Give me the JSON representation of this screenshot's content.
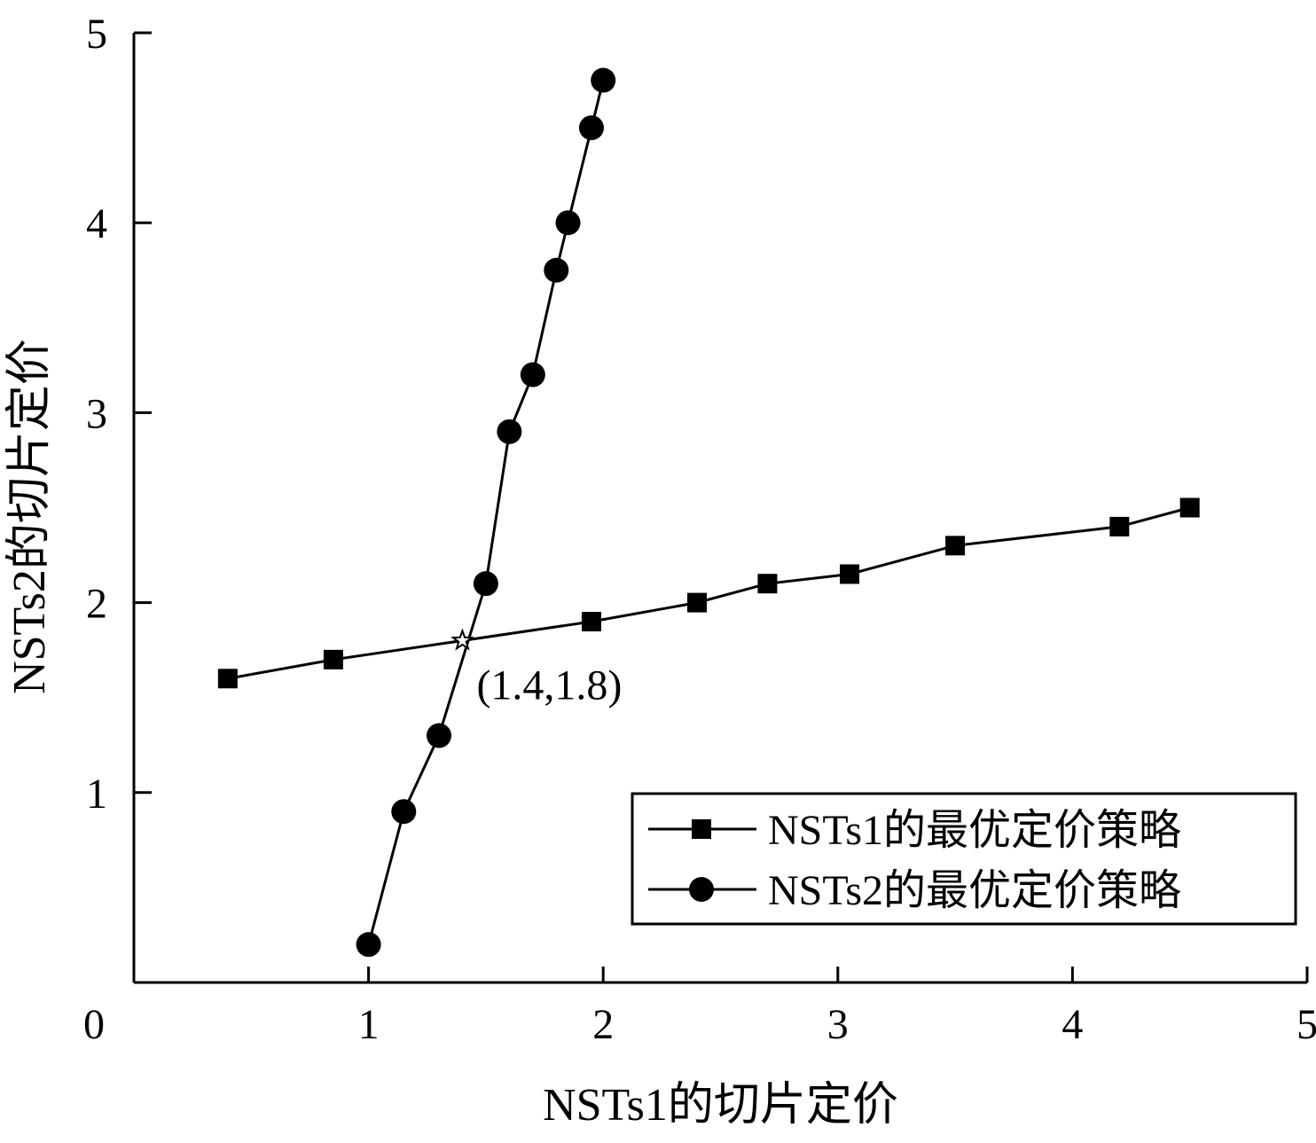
{
  "chart_data": {
    "type": "line",
    "title": "",
    "xlabel": "NSTs1的切片定价",
    "ylabel": "NSTs2的切片定价",
    "xlim": [
      0,
      5
    ],
    "ylim": [
      0,
      5
    ],
    "x_ticks": [
      "0",
      "1",
      "2",
      "3",
      "4",
      "5"
    ],
    "y_ticks": [
      "1",
      "2",
      "3",
      "4",
      "5"
    ],
    "grid": false,
    "legend_position": "bottom-right",
    "colors": {
      "line": "#000000",
      "background": "#ffffff"
    },
    "series": [
      {
        "name": "NSTs1的最优定价策略",
        "marker": "square",
        "x": [
          0.4,
          0.85,
          1.95,
          2.4,
          2.7,
          3.05,
          3.5,
          4.2,
          4.5
        ],
        "y": [
          1.6,
          1.7,
          1.9,
          2.0,
          2.1,
          2.15,
          2.3,
          2.4,
          2.5
        ]
      },
      {
        "name": "NSTs2的最优定价策略",
        "marker": "circle",
        "x": [
          1.0,
          1.15,
          1.3,
          1.5,
          1.6,
          1.7,
          1.8,
          1.85,
          1.95,
          2.0
        ],
        "y": [
          0.2,
          0.9,
          1.3,
          2.1,
          2.9,
          3.2,
          3.75,
          4.0,
          4.5,
          4.75
        ]
      }
    ],
    "annotations": [
      {
        "text": "(1.4,1.8)",
        "x": 1.4,
        "y": 1.8,
        "marker": "star"
      }
    ]
  }
}
